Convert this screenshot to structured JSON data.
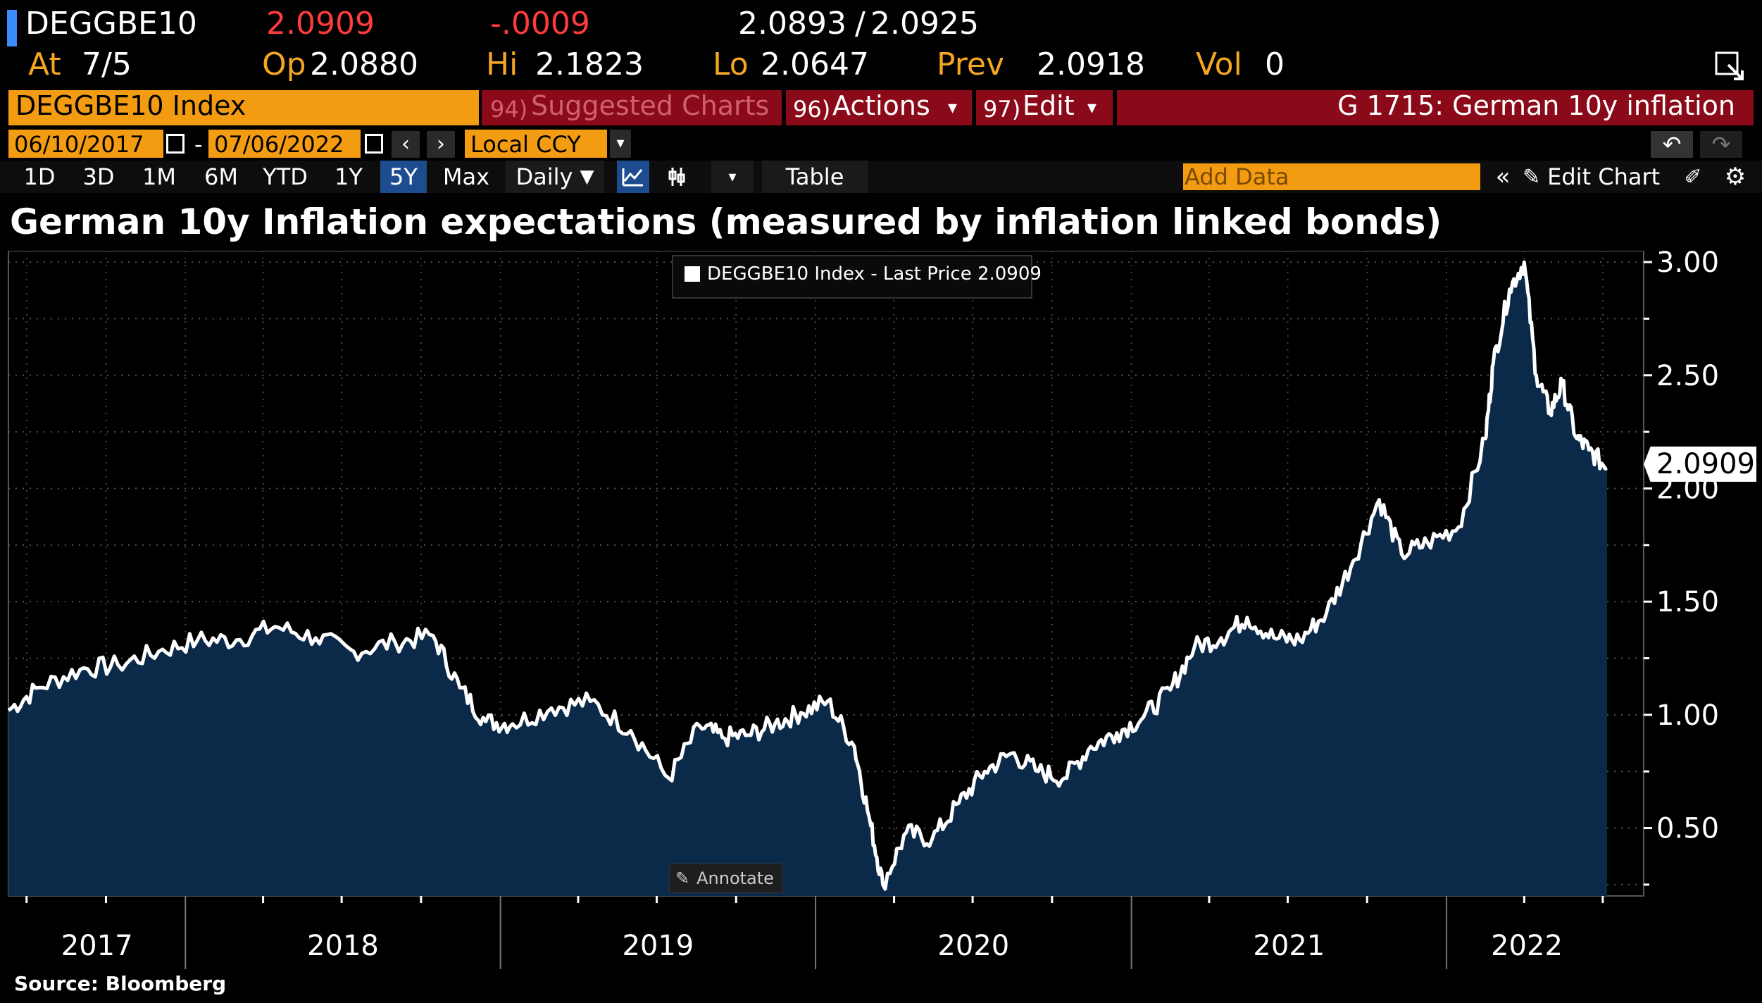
{
  "ticker_bar": {
    "ticker": "DEGGBE10",
    "last": "2.0909",
    "change": "-.0009",
    "bid_ask": "2.0893",
    "ask": "2.0925",
    "at_label": "At",
    "at_value": "7/5",
    "op_label": "Op",
    "op_value": "2.0880",
    "hi_label": "Hi",
    "hi_value": "2.1823",
    "lo_label": "Lo",
    "lo_value": "2.0647",
    "prev_label": "Prev",
    "prev_value": "2.0918",
    "vol_label": "Vol",
    "vol_value": "0"
  },
  "toolbar": {
    "security": "DEGGBE10 Index",
    "suggested_num": "94)",
    "suggested": "Suggested Charts",
    "actions_num": "96)",
    "actions": "Actions",
    "edit_num": "97)",
    "edit": "Edit",
    "chart_id": "G 1715: German 10y inflation",
    "start_date": "06/10/2017",
    "date_sep": "-",
    "end_date": "07/06/2022",
    "currency": "Local CCY",
    "periods": [
      "1D",
      "3D",
      "1M",
      "6M",
      "YTD",
      "1Y",
      "5Y",
      "Max"
    ],
    "active_period": "5Y",
    "frequency": "Daily",
    "table": "Table",
    "add_data_placeholder": "Add Data",
    "edit_chart": "Edit Chart"
  },
  "chart_data": {
    "type": "area",
    "title": "German 10y Inflation expectations (measured by inflation linked bonds)",
    "legend": "DEGGBE10 Index - Last Price 2.0909",
    "legend_position": "top-center",
    "last_value_label": "2.0909",
    "annotate_label": "Annotate",
    "y_ticks": [
      "3.00",
      "2.50",
      "2.00",
      "1.50",
      "1.00",
      "0.50"
    ],
    "ylim": [
      0.2,
      3.05
    ],
    "y_axis_side": "right",
    "grid": true,
    "x_year_labels": [
      "2017",
      "2018",
      "2019",
      "2020",
      "2021",
      "2022"
    ],
    "xlim": [
      "2017-06-10",
      "2022-07-06"
    ],
    "series": [
      {
        "color": "#ffffff",
        "fill": "#0b2a4a",
        "x": [
          "2017-06-10",
          "2017-07-15",
          "2017-09-01",
          "2017-10-15",
          "2017-12-01",
          "2018-01-15",
          "2018-03-01",
          "2018-04-15",
          "2018-06-01",
          "2018-07-15",
          "2018-09-01",
          "2018-10-15",
          "2018-11-15",
          "2018-12-15",
          "2019-01-15",
          "2019-03-01",
          "2019-04-15",
          "2019-06-01",
          "2019-07-15",
          "2019-08-20",
          "2019-09-15",
          "2019-10-15",
          "2019-11-15",
          "2019-12-15",
          "2020-01-15",
          "2020-02-15",
          "2020-03-05",
          "2020-03-19",
          "2020-04-15",
          "2020-05-15",
          "2020-06-15",
          "2020-07-15",
          "2020-08-15",
          "2020-09-15",
          "2020-10-15",
          "2020-11-15",
          "2020-12-15",
          "2021-01-15",
          "2021-02-15",
          "2021-03-15",
          "2021-04-15",
          "2021-05-15",
          "2021-06-15",
          "2021-07-15",
          "2021-08-15",
          "2021-09-15",
          "2021-10-15",
          "2021-11-10",
          "2021-12-10",
          "2022-01-15",
          "2022-02-15",
          "2022-02-24",
          "2022-03-15",
          "2022-04-01",
          "2022-04-15",
          "2022-05-01",
          "2022-05-15",
          "2022-06-01",
          "2022-06-15",
          "2022-07-06"
        ],
        "values": [
          1.02,
          1.12,
          1.2,
          1.22,
          1.28,
          1.33,
          1.33,
          1.39,
          1.34,
          1.28,
          1.32,
          1.35,
          1.12,
          0.97,
          0.96,
          1.03,
          1.06,
          0.93,
          0.72,
          0.95,
          0.9,
          0.91,
          0.96,
          1.01,
          1.06,
          0.86,
          0.51,
          0.25,
          0.48,
          0.45,
          0.61,
          0.75,
          0.83,
          0.75,
          0.72,
          0.86,
          0.92,
          0.99,
          1.11,
          1.3,
          1.34,
          1.43,
          1.34,
          1.33,
          1.45,
          1.68,
          1.95,
          1.71,
          1.76,
          1.83,
          2.22,
          2.55,
          2.88,
          3.0,
          2.5,
          2.34,
          2.46,
          2.22,
          2.17,
          2.09
        ]
      }
    ]
  },
  "footer": {
    "source": "Source: Bloomberg"
  }
}
